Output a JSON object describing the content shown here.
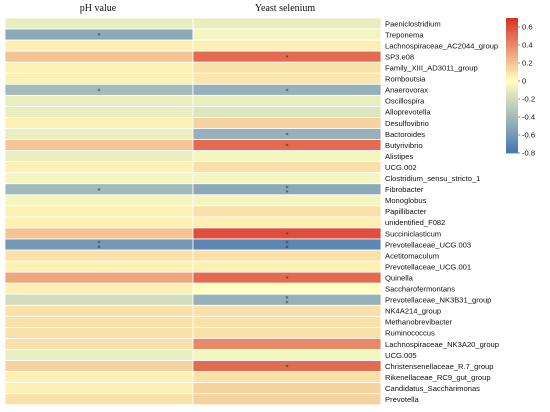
{
  "chart_data": {
    "type": "heatmap",
    "columns": [
      "pH value",
      "Yeast selenium"
    ],
    "rows": [
      "Paeniclostridium",
      "Treponema",
      "Lachnospiraceae_AC2044_group",
      "SP3.e08",
      "Family_XIII_AD3011_group",
      "Romboutsia",
      "Anaerovorax",
      "Oscillospira",
      "Alloprevotella",
      "Desulfovibrio",
      "Bactoroides",
      "Butyrivibrio",
      "Alistipes",
      "UCG.002",
      "Clostridium_sensu_stricto_1",
      "Fibrobacter",
      "Monoglobus",
      "Papillibacter",
      "unidentified_F082",
      "Succiniclasticum",
      "Prevotellaceae_UCG.003",
      "Acetitomaculum",
      "Prevotellaceae_UCG.001",
      "Quinella",
      "Saccharofermontans",
      "Prevotellaceae_NK3B31_group",
      "NK4A214_group",
      "Methanobrevibacter",
      "Ruminococcus",
      "Lachnospiraceae_NK3A20_group",
      "UCG.005",
      "Christensenellaceae_R.7_group",
      "Rikenellaceae_RC9_gut_group",
      "Candidatus_Saccharimonas",
      "Prevotella"
    ],
    "values": [
      [
        -0.1,
        -0.1
      ],
      [
        -0.5,
        -0.05
      ],
      [
        0.05,
        0.05
      ],
      [
        0.2,
        0.5
      ],
      [
        0.05,
        0.1
      ],
      [
        0.05,
        0.08
      ],
      [
        -0.4,
        -0.45
      ],
      [
        -0.1,
        -0.1
      ],
      [
        -0.1,
        -0.15
      ],
      [
        0.05,
        0.15
      ],
      [
        -0.1,
        -0.45
      ],
      [
        0.2,
        0.5
      ],
      [
        -0.1,
        -0.05
      ],
      [
        0.05,
        0.1
      ],
      [
        -0.05,
        -0.05
      ],
      [
        -0.4,
        -0.5
      ],
      [
        -0.05,
        -0.05
      ],
      [
        0.05,
        0.1
      ],
      [
        0.05,
        0.05
      ],
      [
        0.2,
        0.6
      ],
      [
        -0.6,
        -0.7
      ],
      [
        0.1,
        0.1
      ],
      [
        0.05,
        0.05
      ],
      [
        0.3,
        0.5
      ],
      [
        0.05,
        0.0
      ],
      [
        -0.2,
        -0.45
      ],
      [
        0.1,
        0.1
      ],
      [
        0.1,
        0.1
      ],
      [
        0.1,
        0.1
      ],
      [
        0.1,
        0.4
      ],
      [
        -0.1,
        -0.05
      ],
      [
        0.15,
        0.5
      ],
      [
        0.05,
        0.1
      ],
      [
        0.05,
        0.15
      ],
      [
        0.1,
        0.15
      ]
    ],
    "significance": [
      [
        "",
        ""
      ],
      [
        "*",
        ""
      ],
      [
        "",
        ""
      ],
      [
        "",
        "*"
      ],
      [
        "",
        ""
      ],
      [
        "",
        ""
      ],
      [
        "*",
        "*"
      ],
      [
        "",
        ""
      ],
      [
        "",
        ""
      ],
      [
        "",
        ""
      ],
      [
        "",
        "*"
      ],
      [
        "",
        "*"
      ],
      [
        "",
        ""
      ],
      [
        "",
        ""
      ],
      [
        "",
        ""
      ],
      [
        "*",
        "**"
      ],
      [
        "",
        ""
      ],
      [
        "",
        ""
      ],
      [
        "",
        ""
      ],
      [
        "",
        "*"
      ],
      [
        "**",
        "**"
      ],
      [
        "",
        ""
      ],
      [
        "",
        ""
      ],
      [
        "",
        "*"
      ],
      [
        "",
        ""
      ],
      [
        "",
        "**"
      ],
      [
        "",
        ""
      ],
      [
        "",
        ""
      ],
      [
        "",
        ""
      ],
      [
        "",
        ""
      ],
      [
        "",
        ""
      ],
      [
        "",
        "*"
      ],
      [
        "",
        ""
      ],
      [
        "",
        ""
      ],
      [
        "",
        ""
      ]
    ],
    "colorbar": {
      "ticks": [
        0.6,
        0.4,
        0.2,
        0,
        -0.2,
        -0.4,
        -0.6,
        -0.8
      ],
      "tick_labels": [
        "0.6",
        "0.4",
        "0.2",
        "0",
        "-0.2",
        "-0.4",
        "-0.6",
        "-0.8"
      ],
      "range": [
        -0.8,
        0.7
      ]
    },
    "color_scale": {
      "negative": "#4575b4",
      "neutral": "#ffffbf",
      "positive": "#d73027"
    }
  }
}
